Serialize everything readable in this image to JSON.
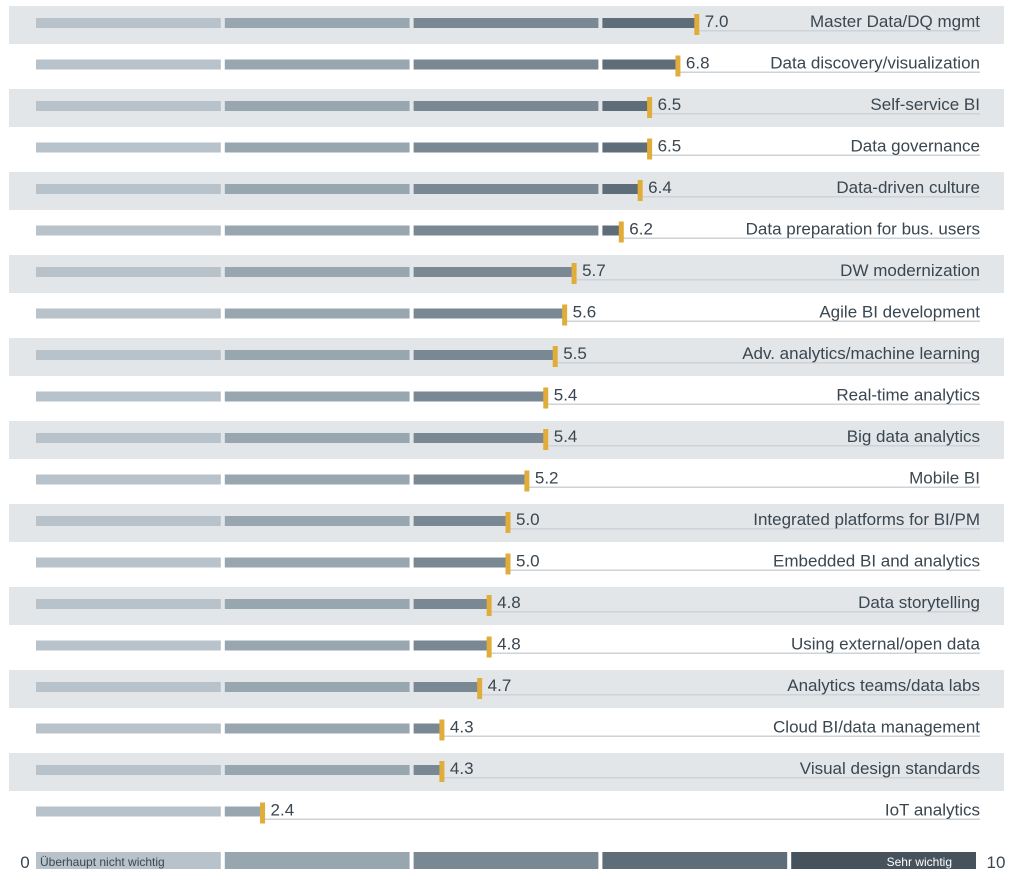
{
  "chart_data": {
    "type": "bar",
    "orientation": "horizontal",
    "xlim": [
      0,
      10
    ],
    "categories": [
      "Master Data/DQ mgmt",
      "Data discovery/visualization",
      "Self-service BI",
      "Data governance",
      "Data-driven culture",
      "Data preparation for bus. users",
      "DW modernization",
      "Agile BI development",
      "Adv. analytics/machine learning",
      "Real-time analytics",
      "Big data analytics",
      "Mobile BI",
      "Integrated platforms for BI/PM",
      "Embedded BI and analytics",
      "Data storytelling",
      "Using external/open data",
      "Analytics teams/data labs",
      "Cloud BI/data management",
      "Visual design standards",
      "IoT analytics"
    ],
    "values": [
      7.0,
      6.8,
      6.5,
      6.5,
      6.4,
      6.2,
      5.7,
      5.6,
      5.5,
      5.4,
      5.4,
      5.2,
      5.0,
      5.0,
      4.8,
      4.8,
      4.7,
      4.3,
      4.3,
      2.4
    ],
    "value_labels": [
      "7.0",
      "6.8",
      "6.5",
      "6.5",
      "6.4",
      "6.2",
      "5.7",
      "5.6",
      "5.5",
      "5.4",
      "5.4",
      "5.2",
      "5.0",
      "5.0",
      "4.8",
      "4.8",
      "4.7",
      "4.3",
      "4.3",
      "2.4"
    ],
    "scale": {
      "min_label": "0",
      "max_label": "10",
      "low_text": "Überhaupt nicht wichtig",
      "high_text": "Sehr wichtig"
    },
    "colors": {
      "segments": [
        "#b8c2ca",
        "#98a6b0",
        "#7a8894",
        "#5e6d78",
        "#46535d"
      ],
      "marker": "#e0ac3a",
      "row_band": "#e3e6e8",
      "underline": "#cdd3d7",
      "text": "#3a4650"
    }
  }
}
